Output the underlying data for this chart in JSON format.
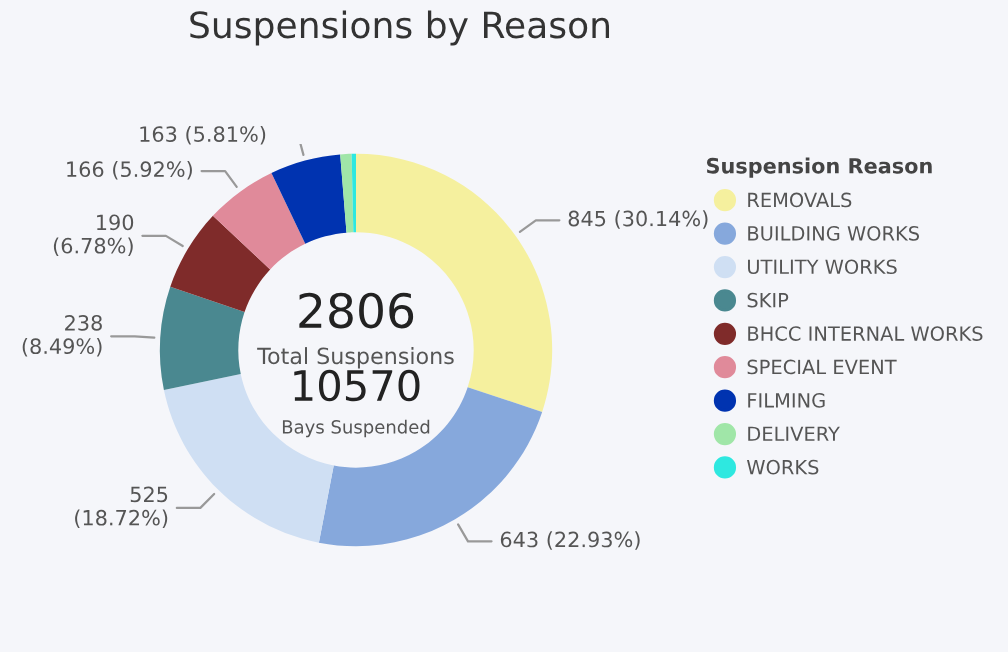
{
  "chart_data": {
    "type": "donut",
    "title": "Suspensions by Reason",
    "legend_title": "Suspension Reason",
    "legend": "right",
    "categories": [
      "REMOVALS",
      "BUILDING WORKS",
      "UTILITY WORKS",
      "SKIP",
      "BHCC INTERNAL WORKS",
      "SPECIAL EVENT",
      "FILMING",
      "DELIVERY",
      "WORKS"
    ],
    "values": [
      845,
      643,
      525,
      238,
      190,
      166,
      163,
      26,
      10
    ],
    "colors": [
      "#f5f09e",
      "#86a8dc",
      "#cfdff3",
      "#4a8890",
      "#7f2b2a",
      "#e08a9a",
      "#0033b0",
      "#a0e6a8",
      "#2ee8e0"
    ],
    "value_labels": [
      "845 (30.14%)",
      "643 (22.93%)",
      "525 (18.72%)",
      "238 (8.49%)",
      "190 (6.78%)",
      "166 (5.92%)",
      "163 (5.81%)",
      null,
      null
    ],
    "annotations": [
      "2806",
      "Total Suspensions",
      "10570",
      "Bays Suspended"
    ]
  }
}
